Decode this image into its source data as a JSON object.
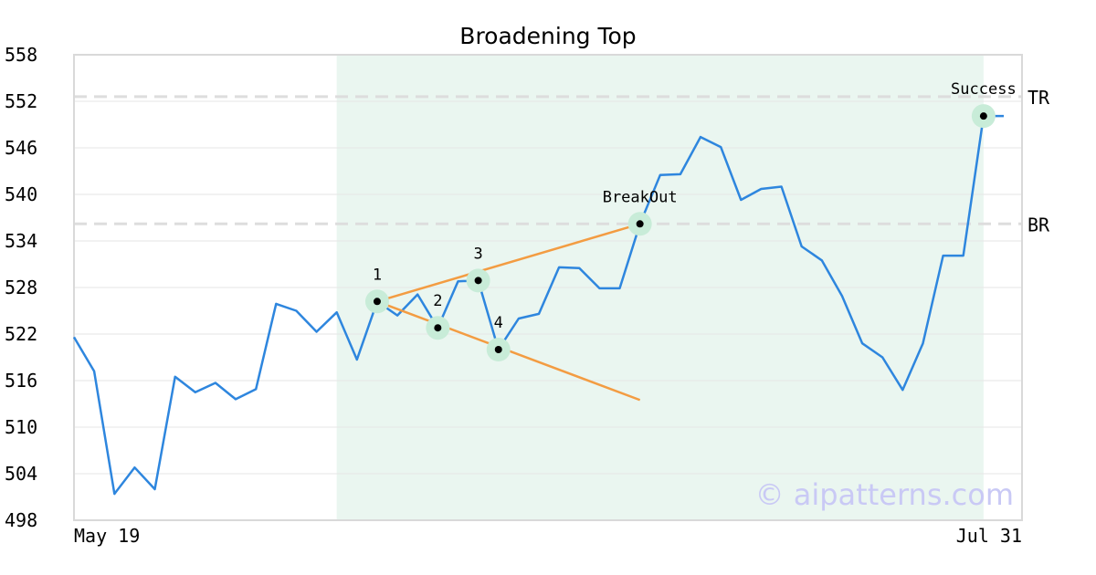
{
  "chart_data": {
    "type": "line",
    "title": "Broadening Top",
    "xlabel": "",
    "ylabel": "",
    "x_tick_labels": [
      "May 19",
      "Jul 31"
    ],
    "y_ticks": [
      498,
      504,
      510,
      516,
      522,
      528,
      534,
      540,
      546,
      552,
      558
    ],
    "ylim": [
      498,
      558
    ],
    "grid": "horizontal",
    "series": [
      {
        "color": "#2e86de",
        "values": [
          521.6,
          517.2,
          501.4,
          504.8,
          502.0,
          516.5,
          514.5,
          515.7,
          513.6,
          514.9,
          525.9,
          525.0,
          522.3,
          524.8,
          518.7,
          526.2,
          524.4,
          527.1,
          522.8,
          528.8,
          528.9,
          520.0,
          524.0,
          524.6,
          530.6,
          530.5,
          527.9,
          527.9,
          536.2,
          542.5,
          542.6,
          547.4,
          546.1,
          539.3,
          540.7,
          541.0,
          533.3,
          531.5,
          526.9,
          520.8,
          519.0,
          514.8,
          520.8,
          532.1,
          532.1,
          550.1,
          550.1
        ]
      }
    ],
    "shaded_region": {
      "start_index": 13,
      "end_index": 45,
      "color": "#eaf6f0"
    },
    "levels": [
      {
        "label": "TR",
        "value": 552.6
      },
      {
        "label": "BR",
        "value": 536.2
      }
    ],
    "trendlines": [
      {
        "color": "#f39c42",
        "from": {
          "index": 15,
          "value": 526.2
        },
        "to": {
          "index": 28,
          "value": 536.2
        }
      },
      {
        "color": "#f39c42",
        "from": {
          "index": 15,
          "value": 526.2
        },
        "to": {
          "index": 28,
          "value": 513.5
        }
      }
    ],
    "markers": [
      {
        "label": "1",
        "index": 15,
        "value": 526.2,
        "label_pos": "above"
      },
      {
        "label": "2",
        "index": 18,
        "value": 522.8,
        "label_pos": "above"
      },
      {
        "label": "3",
        "index": 20,
        "value": 528.9,
        "label_pos": "above"
      },
      {
        "label": "4",
        "index": 21,
        "value": 520.0,
        "label_pos": "above"
      },
      {
        "label": "BreakOut",
        "index": 28,
        "value": 536.2,
        "label_pos": "above"
      },
      {
        "label": "Success",
        "index": 45,
        "value": 550.1,
        "label_pos": "above"
      }
    ],
    "watermark": "© aipatterns.com"
  }
}
